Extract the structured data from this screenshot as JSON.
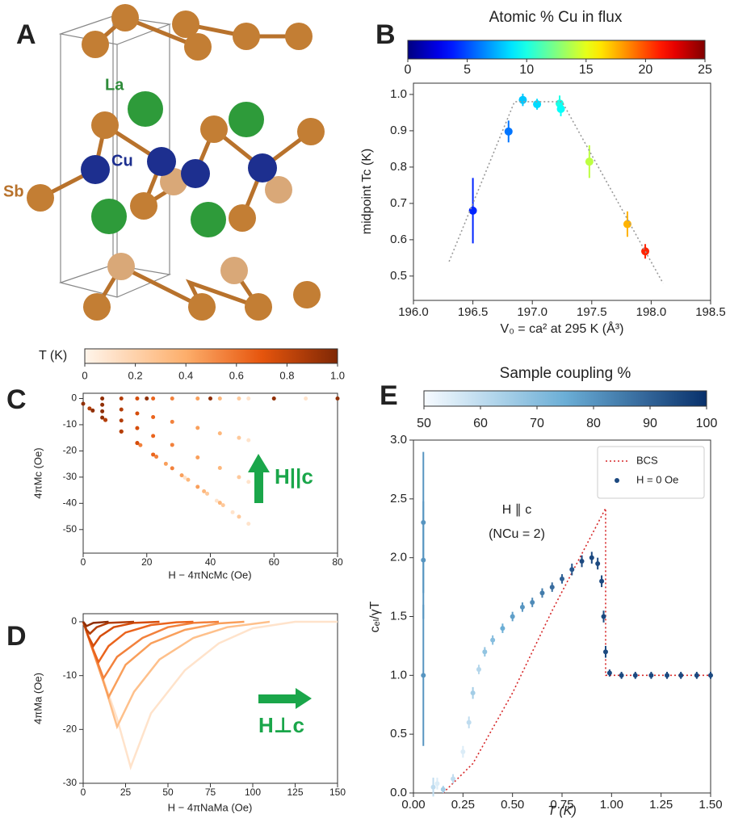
{
  "structure": {
    "panel_label": "A",
    "atoms": [
      "La",
      "Cu",
      "Sb"
    ]
  },
  "chart_data": [
    {
      "type": "scatter",
      "panel_label": "B",
      "colorbar_label": "Atomic % Cu in flux",
      "colormap": "jet",
      "clim": [
        0,
        25
      ],
      "cticks": [
        0,
        5,
        10,
        15,
        20,
        25
      ],
      "xlabel": "V₀ = ca² at 295 K (Å³)",
      "ylabel": "midpoint Tc (K)",
      "xlim": [
        196.0,
        198.5
      ],
      "xticks": [
        {
          "value": 196,
          "label": "196.0"
        },
        196.5,
        {
          "value": 197,
          "label": "197.0"
        },
        197.5,
        {
          "value": 198,
          "label": "198.0"
        },
        198.5
      ],
      "ylim": [
        0.433,
        1.031
      ],
      "yticks": [
        0.5,
        0.6,
        0.7,
        0.8,
        0.9,
        {
          "value": 1,
          "label": "1.0"
        }
      ],
      "series": [
        {
          "x": [
            196.5,
            196.8,
            196.92,
            197.04,
            197.23,
            197.24,
            197.48,
            197.8,
            197.95
          ],
          "values": [
            0.68,
            0.898,
            0.985,
            0.973,
            0.975,
            0.96,
            0.815,
            0.643,
            0.568
          ],
          "errors": [
            0.09,
            0.03,
            0.017,
            0.015,
            0.022,
            0.02,
            0.045,
            0.035,
            0.02
          ],
          "color_values": [
            4,
            6,
            8,
            8.5,
            10,
            9.5,
            14,
            17.5,
            21
          ]
        },
        {
          "x": [
            196.3,
            196.85,
            197.25,
            198.1
          ],
          "values": [
            0.54,
            0.98,
            0.98,
            0.48
          ],
          "color": "#9a9a9a",
          "line_style": "dotted"
        }
      ]
    },
    {
      "type": "scatter",
      "panel_label": "C",
      "colorbar_label": "T (K)",
      "colormap": "oranges",
      "clim": [
        0,
        1
      ],
      "cticks": [
        0,
        0.2,
        0.4,
        0.6,
        0.8,
        {
          "value": 1,
          "label": "1.0"
        }
      ],
      "xlabel": "H − 4πNcMc (Oe)",
      "ylabel": "4πMc (Oe)",
      "annotations": [
        "H||c"
      ],
      "xlim": [
        0,
        80
      ],
      "xticks": [
        0,
        20,
        40,
        60,
        80
      ],
      "ylim": [
        -59,
        2
      ],
      "yticks": [
        0,
        -10,
        -20,
        -30,
        -40,
        -50
      ],
      "series": [
        {
          "t": 0.1,
          "x": [
            2,
            12,
            22,
            32,
            42,
            47,
            52,
            52,
            52,
            52,
            60,
            70,
            80
          ],
          "values": [
            -3.8,
            -12.6,
            -21.4,
            -30.2,
            -39,
            -43.4,
            -47.8,
            -31.8,
            -15.9,
            0,
            0,
            0,
            0
          ]
        },
        {
          "t": 0.25,
          "x": [
            39,
            44,
            49,
            49,
            49,
            49
          ],
          "values": [
            -36.3,
            -40.7,
            -45.1,
            -30,
            -15,
            0
          ]
        },
        {
          "t": 0.35,
          "x": [
            33,
            38,
            43,
            43,
            43,
            43
          ],
          "values": [
            -31,
            -35.4,
            -39.8,
            -26.5,
            -13.3,
            0
          ]
        },
        {
          "t": 0.45,
          "x": [
            26,
            31,
            36,
            36,
            36,
            36
          ],
          "values": [
            -24.9,
            -29.3,
            -33.7,
            -22.5,
            -11.2,
            0
          ]
        },
        {
          "t": 0.55,
          "x": [
            18,
            23,
            28,
            28,
            28,
            28
          ],
          "values": [
            -17.8,
            -22.2,
            -26.6,
            -17.7,
            -8.9,
            0
          ]
        },
        {
          "t": 0.65,
          "x": [
            12,
            17,
            22,
            22,
            22,
            22
          ],
          "values": [
            -12.6,
            -17,
            -21.4,
            -14.3,
            -7.1,
            0
          ]
        },
        {
          "t": 0.75,
          "x": [
            7,
            12,
            17,
            17,
            17,
            17
          ],
          "values": [
            -8.2,
            -12.6,
            -17,
            -11.3,
            -5.7,
            0
          ]
        },
        {
          "t": 0.85,
          "x": [
            2,
            7,
            12,
            12,
            12,
            12
          ],
          "values": [
            -3.8,
            -8.2,
            -12.6,
            -8.4,
            -4.2,
            0
          ]
        },
        {
          "t": 0.95,
          "x": [
            0,
            3,
            6,
            6,
            6,
            6,
            20,
            40,
            60,
            80
          ],
          "values": [
            -2,
            -4.6,
            -7.3,
            -4.9,
            -2.4,
            0,
            0,
            0,
            0,
            0
          ]
        }
      ]
    },
    {
      "type": "line",
      "panel_label": "D",
      "colormap": "oranges",
      "clim": [
        0,
        1
      ],
      "xlabel": "H − 4πNaMa (Oe)",
      "ylabel": "4πMa (Oe)",
      "annotations": [
        "H⊥c"
      ],
      "xlim": [
        0,
        150
      ],
      "xticks": [
        0,
        25,
        50,
        75,
        100,
        125,
        150
      ],
      "ylim": [
        -30,
        1.5
      ],
      "yticks": [
        0,
        -10,
        -20,
        -30
      ],
      "series": [
        {
          "t": 0.1,
          "x": [
            0,
            10,
            20,
            28,
            40,
            60,
            80,
            100,
            125,
            150
          ],
          "values": [
            0,
            -9,
            -18,
            -27,
            -17,
            -9,
            -4,
            -1.2,
            0,
            0
          ]
        },
        {
          "t": 0.3,
          "x": [
            0,
            10,
            20,
            30,
            45,
            65,
            85,
            110
          ],
          "values": [
            0,
            -9,
            -19.5,
            -13,
            -7,
            -3,
            -1,
            0
          ]
        },
        {
          "t": 0.45,
          "x": [
            0,
            8,
            15,
            25,
            40,
            60,
            80,
            95
          ],
          "values": [
            0,
            -7.5,
            -14,
            -8,
            -4,
            -1.5,
            -0.3,
            0
          ]
        },
        {
          "t": 0.55,
          "x": [
            0,
            6,
            12,
            20,
            35,
            50,
            65,
            80
          ],
          "values": [
            0,
            -5.5,
            -10.5,
            -6.5,
            -3,
            -1,
            -0.2,
            0
          ]
        },
        {
          "t": 0.65,
          "x": [
            0,
            5,
            9,
            15,
            25,
            40,
            55,
            65
          ],
          "values": [
            0,
            -4.5,
            -7.5,
            -4.5,
            -2,
            -0.6,
            -0.1,
            0
          ]
        },
        {
          "t": 0.75,
          "x": [
            0,
            3,
            6,
            10,
            18,
            30,
            45
          ],
          "values": [
            0,
            -2.7,
            -4.5,
            -2.7,
            -1,
            -0.2,
            0
          ]
        },
        {
          "t": 0.85,
          "x": [
            0,
            2,
            4,
            8,
            15,
            30
          ],
          "values": [
            0,
            -1.5,
            -2.2,
            -1,
            -0.2,
            0
          ]
        },
        {
          "t": 0.95,
          "x": [
            0,
            2,
            6,
            15
          ],
          "values": [
            0,
            -0.8,
            -0.2,
            0
          ]
        }
      ]
    },
    {
      "type": "scatter",
      "panel_label": "E",
      "colorbar_label": "Sample coupling %",
      "colormap": "blues",
      "clim": [
        50,
        100
      ],
      "cticks": [
        50,
        60,
        70,
        80,
        90,
        100
      ],
      "xlabel": "T (K)",
      "ylabel": "cₑₗ/γT",
      "annotations": [
        "H ∥ c",
        "(NCu = 2)"
      ],
      "legend": "upper right",
      "xlim": [
        0,
        1.5
      ],
      "xticks": [
        {
          "value": 0,
          "label": "0.00"
        },
        {
          "value": 0.25,
          "label": "0.25"
        },
        {
          "value": 0.5,
          "label": "0.50"
        },
        {
          "value": 0.75,
          "label": "0.75"
        },
        {
          "value": 1,
          "label": "1.00"
        },
        {
          "value": 1.25,
          "label": "1.25"
        },
        {
          "value": 1.5,
          "label": "1.50"
        }
      ],
      "ylim": [
        0,
        3
      ],
      "yticks": [
        {
          "value": 0,
          "label": "0.0"
        },
        0.5,
        {
          "value": 1,
          "label": "1.0"
        },
        1.5,
        {
          "value": 2,
          "label": "2.0"
        },
        2.5,
        {
          "value": 3,
          "label": "3.0"
        }
      ],
      "series": [
        {
          "name": "BCS",
          "color": "#d62728",
          "line_style": "dotted",
          "x": [
            0.15,
            0.3,
            0.5,
            0.7,
            0.97,
            0.97,
            1.5
          ],
          "values": [
            0,
            0.25,
            0.85,
            1.55,
            2.42,
            1.0,
            1.0
          ]
        },
        {
          "name": "H = 0 Oe",
          "x": [
            0.05,
            0.05,
            0.05,
            0.1,
            0.12,
            0.15,
            0.2,
            0.25,
            0.28,
            0.3,
            0.33,
            0.36,
            0.4,
            0.45,
            0.5,
            0.55,
            0.6,
            0.65,
            0.7,
            0.75,
            0.8,
            0.85,
            0.9,
            0.93,
            0.95,
            0.96,
            0.97,
            0.99,
            1.05,
            1.12,
            1.2,
            1.28,
            1.35,
            1.43,
            1.5
          ],
          "values": [
            2.3,
            1.98,
            1.0,
            0.05,
            0.08,
            0.03,
            0.12,
            0.35,
            0.6,
            0.85,
            1.05,
            1.2,
            1.3,
            1.4,
            1.5,
            1.58,
            1.62,
            1.7,
            1.75,
            1.82,
            1.9,
            1.97,
            2.0,
            1.95,
            1.8,
            1.5,
            1.2,
            1.02,
            1.0,
            1.0,
            1.0,
            1.0,
            1.0,
            1.0,
            1.0
          ],
          "errors": [
            0.6,
            0.5,
            0.6,
            0.08,
            0.05,
            0.03,
            0.04,
            0.05,
            0.05,
            0.05,
            0.04,
            0.04,
            0.04,
            0.04,
            0.04,
            0.04,
            0.04,
            0.04,
            0.04,
            0.04,
            0.05,
            0.05,
            0.05,
            0.05,
            0.05,
            0.05,
            0.05,
            0.03,
            0.03,
            0.03,
            0.03,
            0.03,
            0.03,
            0.03,
            0.03
          ],
          "color_values": [
            80,
            80,
            80,
            60,
            55,
            65,
            60,
            55,
            60,
            65,
            62,
            68,
            70,
            75,
            78,
            80,
            82,
            85,
            88,
            90,
            92,
            95,
            95,
            95,
            95,
            95,
            95,
            95,
            95,
            95,
            95,
            95,
            95,
            95,
            95
          ]
        }
      ]
    }
  ]
}
